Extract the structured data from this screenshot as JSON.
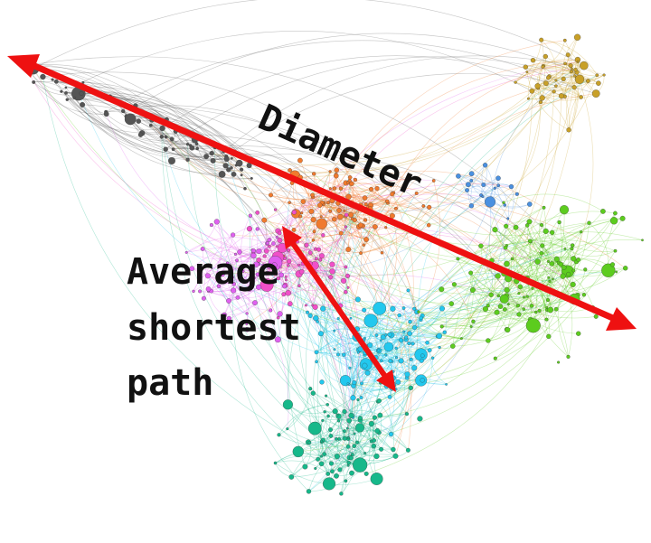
{
  "labels": {
    "diameter": "Diameter",
    "avg_line1": "Average",
    "avg_line2": "shortest",
    "avg_line3": "path"
  },
  "colors": {
    "arrow": "#ee1111",
    "text": "#111111",
    "clusters": {
      "gray": "#555555",
      "orange": "#f07a2e",
      "pink": "#f050c8",
      "magenta": "#e060f0",
      "cyan": "#22c8ee",
      "teal": "#16b88a",
      "green": "#5ccc1e",
      "gold": "#c8a028",
      "blue": "#4a90e0"
    }
  },
  "clusters": [
    "gray",
    "orange",
    "pink",
    "magenta",
    "cyan",
    "teal",
    "green",
    "gold",
    "blue"
  ]
}
